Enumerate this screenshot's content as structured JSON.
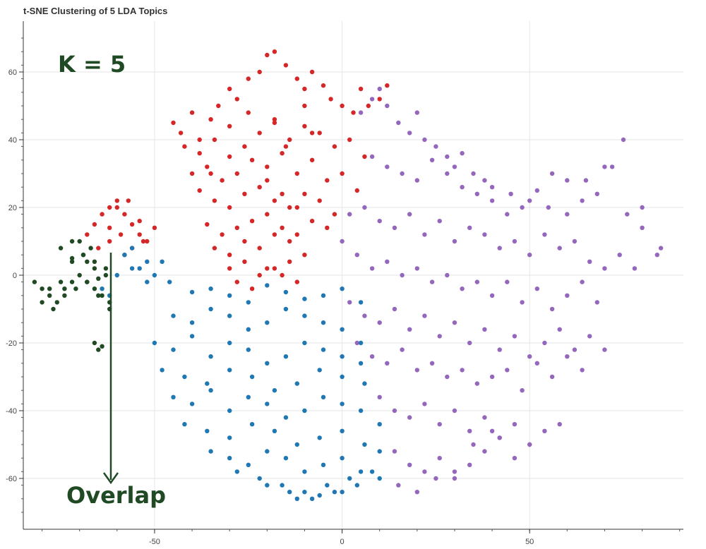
{
  "chart_data": {
    "type": "scatter",
    "title": "t-SNE Clustering of 5 LDA Topics",
    "xlabel": "",
    "ylabel": "",
    "xlim": [
      -85,
      91
    ],
    "ylim": [
      -75,
      75
    ],
    "x_ticks": [
      -50,
      0,
      50
    ],
    "y_ticks": [
      60,
      40,
      20,
      0,
      -20,
      -40,
      -60
    ],
    "grid": true,
    "legend": "none",
    "colors": {
      "red": "#d62728",
      "purple": "#9467bd",
      "blue": "#1f77b4",
      "green": "#1f4a23"
    },
    "series": [
      {
        "color": "#d62728",
        "x": [
          -45,
          -43,
          -40,
          -38,
          -35,
          -33,
          -30,
          -28,
          -25,
          -22,
          -20,
          -18,
          -15,
          -12,
          -10,
          -8,
          -5,
          -3,
          0,
          3,
          5,
          7,
          10,
          12,
          -42,
          -38,
          -34,
          -30,
          -26,
          -22,
          -18,
          -14,
          -10,
          -6,
          -2,
          2,
          6,
          -40,
          -36,
          -32,
          -28,
          -24,
          -20,
          -16,
          -12,
          -8,
          -4,
          0,
          4,
          -38,
          -34,
          -30,
          -26,
          -22,
          -18,
          -14,
          -10,
          -6,
          -2,
          -36,
          -32,
          -28,
          -24,
          -20,
          -16,
          -12,
          -8,
          -4,
          -34,
          -30,
          -26,
          -22,
          -18,
          -14,
          -10,
          -30,
          -26,
          -22,
          -18,
          -14,
          -28,
          -24,
          -20,
          -16,
          -12,
          -20,
          -16,
          -12,
          -18,
          -10,
          -15,
          -8,
          -25,
          -30,
          -35,
          -68,
          -66,
          -64,
          -62,
          -60,
          -58,
          -56,
          -54,
          -52,
          -50,
          -65,
          -62,
          -59,
          -56,
          -53,
          -60,
          -57,
          -54,
          -62,
          -58
        ],
        "y": [
          45,
          42,
          48,
          40,
          46,
          50,
          55,
          52,
          58,
          60,
          65,
          66,
          62,
          58,
          55,
          60,
          56,
          52,
          50,
          48,
          55,
          50,
          52,
          56,
          38,
          36,
          40,
          35,
          38,
          42,
          45,
          40,
          44,
          42,
          38,
          40,
          35,
          30,
          32,
          28,
          30,
          34,
          32,
          36,
          30,
          34,
          28,
          30,
          25,
          25,
          22,
          20,
          24,
          26,
          22,
          20,
          24,
          22,
          18,
          15,
          12,
          14,
          16,
          18,
          14,
          12,
          16,
          14,
          8,
          6,
          10,
          8,
          12,
          10,
          6,
          2,
          4,
          0,
          2,
          4,
          -2,
          -4,
          2,
          0,
          -2,
          28,
          24,
          20,
          46,
          50,
          38,
          42,
          48,
          44,
          30,
          12,
          15,
          18,
          20,
          22,
          18,
          15,
          12,
          10,
          14,
          8,
          10,
          12,
          8,
          10,
          20,
          22,
          16,
          14,
          6
        ]
      },
      {
        "color": "#9467bd",
        "x": [
          5,
          8,
          10,
          12,
          15,
          18,
          20,
          22,
          25,
          28,
          30,
          32,
          35,
          38,
          40,
          45,
          50,
          55,
          60,
          65,
          70,
          75,
          80,
          85,
          8,
          12,
          16,
          20,
          24,
          28,
          32,
          36,
          40,
          44,
          48,
          52,
          56,
          60,
          64,
          68,
          72,
          76,
          80,
          84,
          2,
          6,
          10,
          14,
          18,
          22,
          26,
          30,
          34,
          38,
          42,
          46,
          50,
          54,
          58,
          62,
          66,
          70,
          74,
          78,
          0,
          4,
          8,
          12,
          16,
          20,
          24,
          28,
          32,
          36,
          40,
          44,
          48,
          52,
          56,
          60,
          64,
          68,
          2,
          6,
          10,
          14,
          18,
          22,
          26,
          30,
          34,
          38,
          42,
          46,
          50,
          54,
          58,
          62,
          66,
          4,
          8,
          12,
          16,
          20,
          24,
          28,
          32,
          36,
          40,
          44,
          48,
          52,
          56,
          60,
          64,
          70,
          10,
          14,
          18,
          22,
          26,
          30,
          34,
          38,
          42,
          46,
          50,
          54,
          58,
          14,
          18,
          22,
          26,
          30,
          34,
          38,
          42,
          46,
          50,
          15,
          20,
          25,
          30,
          35,
          40
        ],
        "y": [
          48,
          52,
          55,
          50,
          45,
          42,
          48,
          40,
          38,
          35,
          32,
          36,
          30,
          28,
          26,
          24,
          22,
          20,
          18,
          28,
          32,
          40,
          20,
          8,
          35,
          32,
          30,
          28,
          34,
          30,
          26,
          24,
          22,
          18,
          20,
          25,
          30,
          28,
          22,
          24,
          32,
          18,
          14,
          6,
          18,
          20,
          16,
          14,
          18,
          12,
          16,
          10,
          14,
          12,
          8,
          10,
          6,
          12,
          8,
          10,
          4,
          2,
          6,
          2,
          10,
          6,
          2,
          4,
          0,
          2,
          -2,
          0,
          -4,
          -2,
          -6,
          -2,
          -8,
          -4,
          -10,
          -6,
          -2,
          -8,
          -8,
          -12,
          -14,
          -10,
          -16,
          -12,
          -18,
          -14,
          -20,
          -16,
          -22,
          -18,
          -24,
          -20,
          -16,
          -22,
          -18,
          -20,
          -24,
          -26,
          -22,
          -28,
          -26,
          -30,
          -28,
          -32,
          -30,
          -28,
          -34,
          -26,
          -30,
          -24,
          -28,
          -22,
          -36,
          -40,
          -42,
          -38,
          -44,
          -40,
          -46,
          -42,
          -48,
          -44,
          -50,
          -46,
          -44,
          -52,
          -56,
          -58,
          -54,
          -60,
          -56,
          -52,
          -48,
          -54,
          -50,
          -62,
          -64,
          -60,
          -58,
          -50,
          -46
        ]
      },
      {
        "color": "#1f77b4",
        "x": [
          -40,
          -35,
          -30,
          -25,
          -20,
          -15,
          -10,
          -5,
          0,
          5,
          -45,
          -40,
          -35,
          -30,
          -25,
          -20,
          -15,
          -10,
          -5,
          0,
          5,
          -50,
          -45,
          -40,
          -35,
          -30,
          -25,
          -20,
          -15,
          -10,
          -5,
          0,
          5,
          -48,
          -42,
          -36,
          -30,
          -24,
          -18,
          -12,
          -6,
          0,
          6,
          -45,
          -40,
          -35,
          -30,
          -25,
          -20,
          -15,
          -10,
          -5,
          0,
          5,
          10,
          -42,
          -36,
          -30,
          -24,
          -18,
          -12,
          -6,
          0,
          6,
          10,
          -35,
          -30,
          -25,
          -20,
          -15,
          -10,
          -5,
          0,
          5,
          10,
          -28,
          -22,
          -16,
          -10,
          -4,
          2,
          8,
          -20,
          -14,
          -8,
          -2,
          4,
          -12,
          -6,
          0,
          -60,
          -56,
          -52,
          -48,
          -64,
          -58,
          -54,
          -50,
          -46,
          -62,
          -56,
          -52
        ],
        "y": [
          -5,
          -4,
          -6,
          -8,
          -3,
          -5,
          -7,
          -6,
          -4,
          -8,
          -12,
          -14,
          -10,
          -12,
          -16,
          -14,
          -10,
          -12,
          -14,
          -16,
          -20,
          -20,
          -22,
          -18,
          -24,
          -20,
          -22,
          -26,
          -24,
          -20,
          -22,
          -24,
          -26,
          -28,
          -30,
          -32,
          -28,
          -30,
          -34,
          -32,
          -28,
          -30,
          -32,
          -36,
          -38,
          -34,
          -40,
          -36,
          -38,
          -42,
          -40,
          -36,
          -38,
          -40,
          -44,
          -44,
          -46,
          -48,
          -44,
          -46,
          -50,
          -48,
          -46,
          -50,
          -52,
          -52,
          -54,
          -56,
          -52,
          -54,
          -58,
          -56,
          -54,
          -58,
          -60,
          -58,
          -60,
          -62,
          -64,
          -62,
          -60,
          -58,
          -62,
          -64,
          -66,
          -64,
          -62,
          -66,
          -65,
          -64,
          0,
          2,
          -2,
          4,
          -4,
          6,
          2,
          0,
          -2,
          -6,
          8,
          4
        ]
      },
      {
        "color": "#1f4a23",
        "x": [
          -82,
          -80,
          -78,
          -76,
          -74,
          -72,
          -70,
          -68,
          -66,
          -64,
          -62,
          -80,
          -77,
          -74,
          -71,
          -68,
          -65,
          -62,
          -78,
          -75,
          -72,
          -69,
          -66,
          -63,
          -75,
          -72,
          -69,
          -66,
          -63,
          -70,
          -67,
          -72,
          -68,
          -65,
          -66,
          -65,
          -64
        ],
        "y": [
          -2,
          -4,
          -6,
          -8,
          -4,
          -2,
          0,
          -2,
          -4,
          -6,
          -8,
          -8,
          -10,
          -6,
          -4,
          -2,
          -6,
          -10,
          -4,
          -2,
          4,
          6,
          2,
          0,
          8,
          10,
          6,
          4,
          2,
          10,
          8,
          5,
          4,
          -1,
          -20,
          -22,
          -21
        ]
      }
    ],
    "annotations": [
      {
        "text": "K = 5",
        "color": "#1f4a23"
      },
      {
        "text": "Overlap",
        "color": "#1f4a23"
      }
    ]
  }
}
